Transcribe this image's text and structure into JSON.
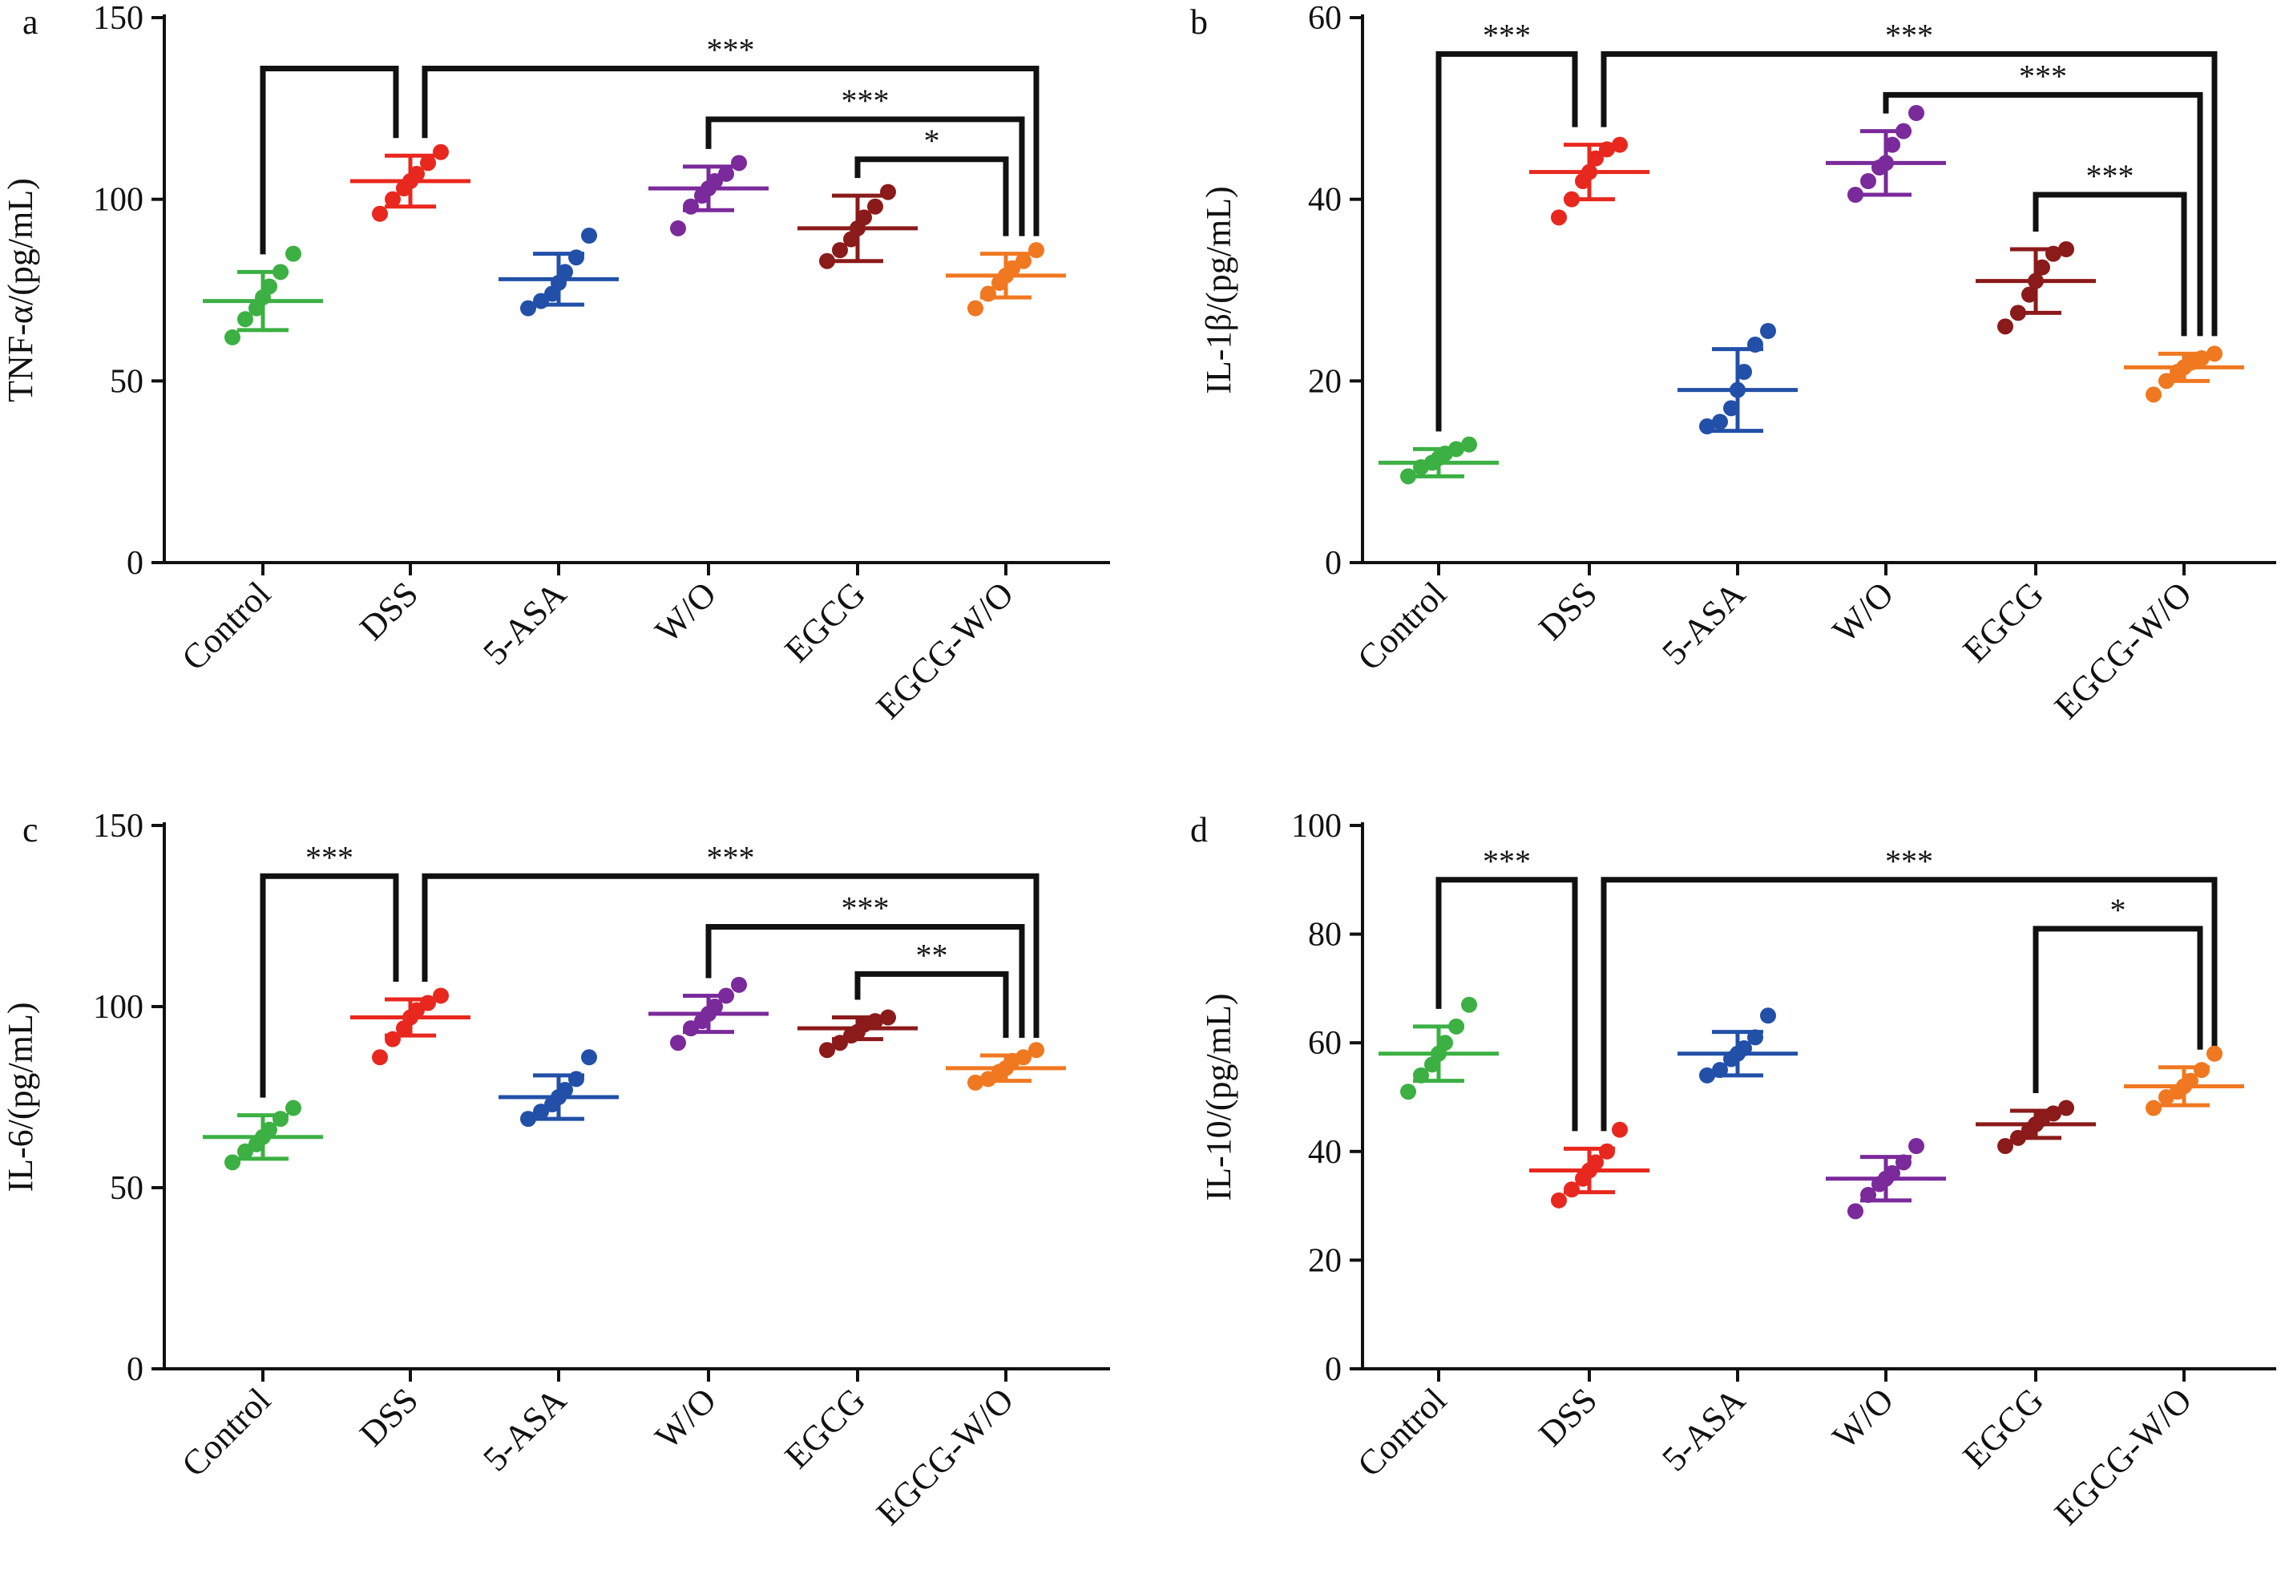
{
  "chart_data": [
    {
      "panel_label": "a",
      "type": "scatter",
      "ylabel": "TNF-α/(pg/mL)",
      "ylim": [
        0,
        150
      ],
      "yticks": [
        "0",
        "50",
        "100",
        "150"
      ],
      "categories": [
        "Control",
        "DSS",
        "5-ASA",
        "W/O",
        "EGCG",
        "EGCG-W/O"
      ],
      "colors": [
        "#3cb043",
        "#e8281e",
        "#2250a8",
        "#7a2a9a",
        "#8b1a1a",
        "#f07820"
      ],
      "means": [
        72,
        105,
        78,
        103,
        92,
        79
      ],
      "sd": [
        8,
        7,
        7,
        6,
        9,
        6
      ],
      "points": [
        [
          62,
          67,
          70,
          73,
          76,
          80,
          85
        ],
        [
          96,
          100,
          103,
          105,
          107,
          110,
          113
        ],
        [
          70,
          72,
          74,
          77,
          80,
          84,
          90
        ],
        [
          92,
          98,
          101,
          103,
          105,
          107,
          110
        ],
        [
          83,
          86,
          89,
          92,
          95,
          98,
          102
        ],
        [
          70,
          74,
          77,
          79,
          81,
          83,
          86
        ]
      ],
      "brackets": [
        {
          "from": 0,
          "to": 1,
          "y": 136,
          "label": ""
        },
        {
          "from": 1,
          "to": 5,
          "y": 136,
          "label": "***"
        },
        {
          "from": 3,
          "to": 5,
          "y": 122,
          "label": "***"
        },
        {
          "from": 4,
          "to": 5,
          "y": 111,
          "label": "*"
        }
      ]
    },
    {
      "panel_label": "b",
      "type": "scatter",
      "ylabel": "IL-1β/(pg/mL)",
      "ylim": [
        0,
        60
      ],
      "yticks": [
        "0",
        "20",
        "40",
        "60"
      ],
      "categories": [
        "Control",
        "DSS",
        "5-ASA",
        "W/O",
        "EGCG",
        "EGCG-W/O"
      ],
      "colors": [
        "#3cb043",
        "#e8281e",
        "#2250a8",
        "#7a2a9a",
        "#8b1a1a",
        "#f07820"
      ],
      "means": [
        11,
        43,
        19,
        44,
        31,
        21.5
      ],
      "sd": [
        1.5,
        3,
        4.5,
        3.5,
        3.5,
        1.5
      ],
      "points": [
        [
          9.5,
          10.5,
          11,
          11.5,
          12,
          12.5,
          13
        ],
        [
          38,
          40,
          42,
          43,
          44.5,
          45.5,
          46
        ],
        [
          15,
          15.5,
          17,
          19,
          21,
          24,
          25.5
        ],
        [
          40.5,
          42,
          43.5,
          44,
          46,
          47.5,
          49.5
        ],
        [
          26,
          27.5,
          29.5,
          31,
          32.5,
          34,
          34.5
        ],
        [
          18.5,
          20,
          21,
          21.5,
          22,
          22.5,
          23
        ]
      ],
      "brackets": [
        {
          "from": 0,
          "to": 1,
          "y": 56,
          "label": "***"
        },
        {
          "from": 1,
          "to": 5,
          "y": 56,
          "label": "***"
        },
        {
          "from": 3,
          "to": 5,
          "y": 51.5,
          "label": "***"
        },
        {
          "from": 4,
          "to": 5,
          "y": 40.5,
          "label": "***"
        }
      ]
    },
    {
      "panel_label": "c",
      "type": "scatter",
      "ylabel": "IL-6/(pg/mL)",
      "ylim": [
        0,
        150
      ],
      "yticks": [
        "0",
        "50",
        "100",
        "150"
      ],
      "categories": [
        "Control",
        "DSS",
        "5-ASA",
        "W/O",
        "EGCG",
        "EGCG-W/O"
      ],
      "colors": [
        "#3cb043",
        "#e8281e",
        "#2250a8",
        "#7a2a9a",
        "#8b1a1a",
        "#f07820"
      ],
      "means": [
        64,
        97,
        75,
        98,
        94,
        83
      ],
      "sd": [
        6,
        5,
        6,
        5,
        3,
        3.5
      ],
      "points": [
        [
          57,
          60,
          62,
          64,
          66,
          69,
          72
        ],
        [
          86,
          91,
          94,
          97,
          99,
          101,
          103
        ],
        [
          69,
          71,
          73,
          75,
          77,
          80,
          86
        ],
        [
          90,
          94,
          96,
          98,
          100,
          103,
          106
        ],
        [
          88,
          90,
          92,
          93,
          95,
          96,
          97
        ],
        [
          79,
          80,
          82,
          83,
          85,
          86,
          88
        ]
      ],
      "brackets": [
        {
          "from": 0,
          "to": 1,
          "y": 136,
          "label": "***"
        },
        {
          "from": 1,
          "to": 5,
          "y": 136,
          "label": "***"
        },
        {
          "from": 3,
          "to": 5,
          "y": 122,
          "label": "***"
        },
        {
          "from": 4,
          "to": 5,
          "y": 109,
          "label": "**"
        }
      ]
    },
    {
      "panel_label": "d",
      "type": "scatter",
      "ylabel": "IL-10/(pg/mL)",
      "ylim": [
        0,
        100
      ],
      "yticks": [
        "0",
        "20",
        "40",
        "60",
        "80",
        "100"
      ],
      "categories": [
        "Control",
        "DSS",
        "5-ASA",
        "W/O",
        "EGCG",
        "EGCG-W/O"
      ],
      "colors": [
        "#3cb043",
        "#e8281e",
        "#2250a8",
        "#7a2a9a",
        "#8b1a1a",
        "#f07820"
      ],
      "means": [
        58,
        36.5,
        58,
        35,
        45,
        52
      ],
      "sd": [
        5,
        4,
        4,
        4,
        2.5,
        3.5
      ],
      "points": [
        [
          51,
          54,
          56,
          58,
          60,
          63,
          67
        ],
        [
          31,
          33,
          35,
          36.5,
          38,
          40,
          44
        ],
        [
          54,
          55,
          57,
          58,
          59,
          61,
          65
        ],
        [
          29,
          32,
          34,
          35,
          36,
          38,
          41
        ],
        [
          41,
          42.5,
          44,
          45,
          46,
          47,
          48
        ],
        [
          48,
          50,
          51,
          52,
          53,
          55,
          58
        ]
      ],
      "brackets": [
        {
          "from": 0,
          "to": 1,
          "y": 90,
          "label": "***"
        },
        {
          "from": 1,
          "to": 5,
          "y": 90,
          "label": "***"
        },
        {
          "from": 4,
          "to": 5,
          "y": 81,
          "label": "*"
        }
      ]
    }
  ]
}
